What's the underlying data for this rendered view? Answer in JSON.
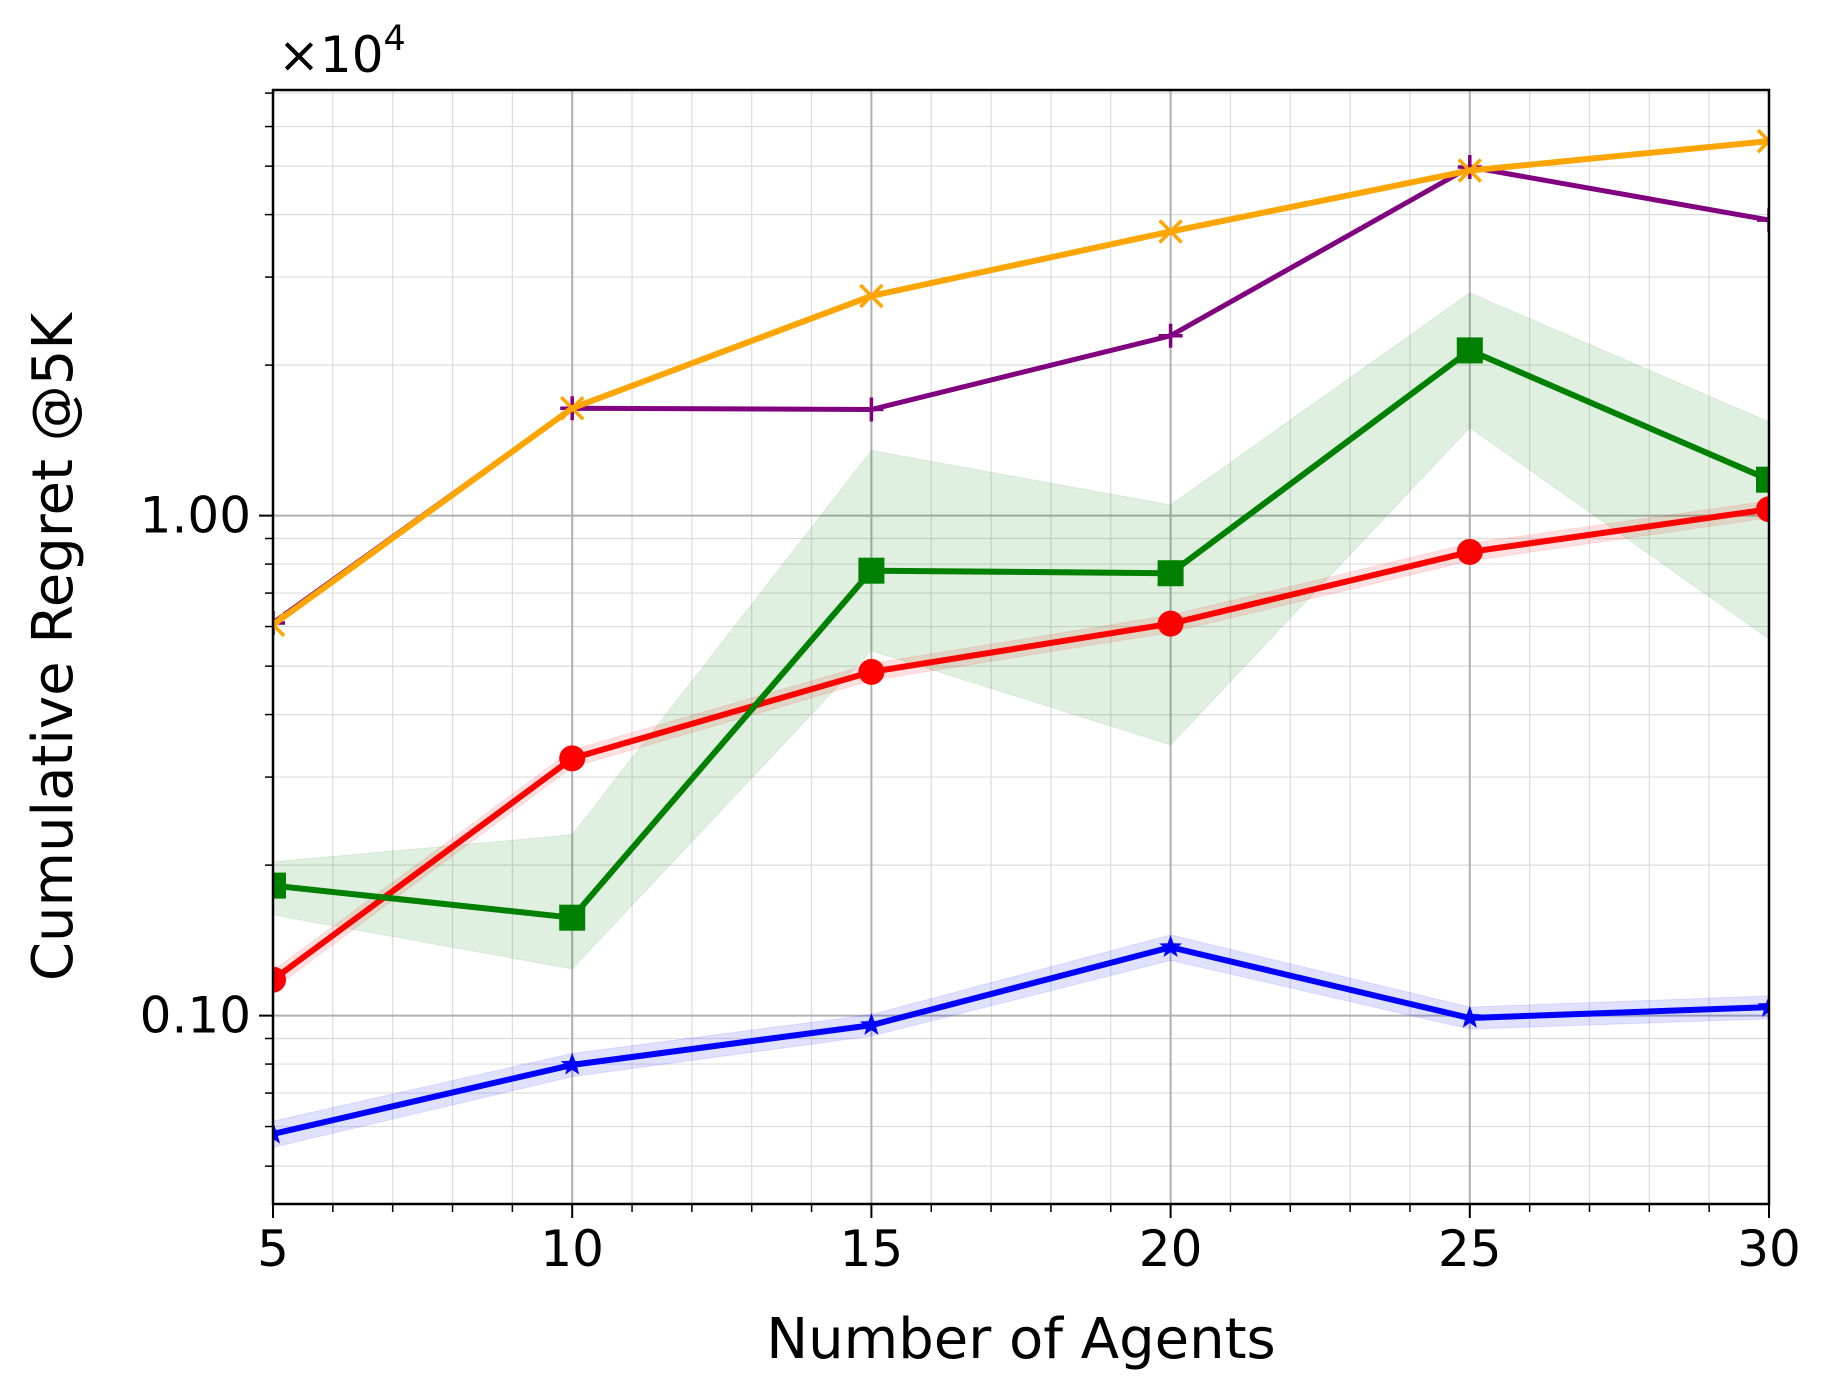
{
  "chart_data": {
    "type": "line",
    "xlabel": "Number of Agents",
    "ylabel": "Cumulative Regret @5K",
    "y_offset_label": "×10",
    "y_offset_exponent": "4",
    "log_y": true,
    "grid": true,
    "x": [
      5,
      10,
      15,
      20,
      25,
      30
    ],
    "xlim": [
      5,
      30
    ],
    "xticks": [
      5,
      10,
      15,
      20,
      25,
      30
    ],
    "xticks_minor": [
      6,
      7,
      8,
      9,
      11,
      12,
      13,
      14,
      16,
      17,
      18,
      19,
      21,
      22,
      23,
      24,
      26,
      27,
      28,
      29
    ],
    "ylim": [
      0.042,
      7.1
    ],
    "yticks": [
      {
        "value": 0.1,
        "label": "0.10"
      },
      {
        "value": 1,
        "label": "1.00"
      }
    ],
    "yticks_minor": [
      0.05,
      0.06,
      0.07,
      0.08,
      0.09,
      0.2,
      0.3,
      0.4,
      0.5,
      0.6,
      0.7,
      0.8,
      0.9,
      2,
      3,
      4,
      5,
      6,
      7
    ],
    "series": [
      {
        "color": "#0000ff",
        "marker": "star",
        "values": [
          0.058,
          0.0797,
          0.0957,
          0.137,
          0.0989,
          0.104
        ],
        "lower": [
          0.0545,
          0.0755,
          0.091,
          0.129,
          0.094,
          0.0985
        ],
        "upper": [
          0.0615,
          0.084,
          0.1005,
          0.145,
          0.104,
          0.1095
        ]
      },
      {
        "color": "#ff0000",
        "marker": "circle",
        "values": [
          0.118,
          0.327,
          0.487,
          0.608,
          0.846,
          1.03
        ],
        "lower": [
          0.113,
          0.314,
          0.468,
          0.584,
          0.812,
          0.99
        ],
        "upper": [
          0.123,
          0.34,
          0.506,
          0.632,
          0.88,
          1.07
        ]
      },
      {
        "color": "#008000",
        "marker": "square",
        "values": [
          0.182,
          0.157,
          0.776,
          0.767,
          2.14,
          1.18
        ],
        "lower": [
          0.159,
          0.124,
          0.537,
          0.348,
          1.5,
          0.567
        ],
        "upper": [
          0.203,
          0.23,
          1.35,
          1.05,
          2.79,
          1.54
        ]
      },
      {
        "color": "#800080",
        "marker": "plus",
        "values": [
          0.61,
          1.64,
          1.63,
          2.29,
          4.98,
          3.9
        ]
      },
      {
        "color": "#ffa500",
        "marker": "x",
        "values": [
          0.605,
          1.64,
          2.75,
          3.7,
          4.9,
          5.61
        ]
      }
    ]
  }
}
